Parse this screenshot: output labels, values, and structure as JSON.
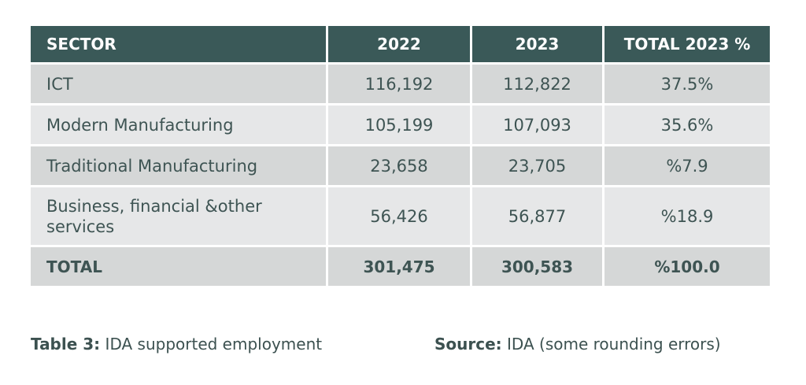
{
  "table": {
    "headers": [
      "SECTOR",
      "2022",
      "2023",
      "TOTAL 2023 %"
    ],
    "rows": [
      {
        "sector": "ICT",
        "y2022": "116,192",
        "y2023": "112,822",
        "pct": "37.5%"
      },
      {
        "sector": "Modern Manufacturing",
        "y2022": "105,199",
        "y2023": "107,093",
        "pct": "35.6%"
      },
      {
        "sector": "Traditional Manufacturing",
        "y2022": "23,658",
        "y2023": "23,705",
        "pct": "%7.9"
      },
      {
        "sector": "Business, financial &other services",
        "y2022": "56,426",
        "y2023": "56,877",
        "pct": "%18.9"
      }
    ],
    "total": {
      "sector": "TOTAL",
      "y2022": "301,475",
      "y2023": "300,583",
      "pct": "%100.0"
    }
  },
  "caption": {
    "table_label": "Table 3:",
    "table_text": "IDA supported employment",
    "source_label": "Source:",
    "source_text": "IDA (some rounding errors)"
  },
  "colors": {
    "header_bg": "#3a5958",
    "row_dark": "#d5d7d7",
    "row_light": "#e6e7e8",
    "text": "#3c5150"
  }
}
